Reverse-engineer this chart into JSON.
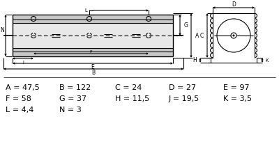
{
  "bg_color": "#ffffff",
  "line_color": "#000000",
  "dim_rows": [
    [
      "A = 47,5",
      "B = 122",
      "C = 24",
      "D = 27",
      "E = 97"
    ],
    [
      "F = 58",
      "G = 37",
      "H = 11,5",
      "J = 19,5",
      "K = 3,5"
    ],
    [
      "L = 4,4",
      "N = 3"
    ]
  ],
  "body_gray_dark": "#c8c8c8",
  "body_gray_light": "#e8e8e8"
}
